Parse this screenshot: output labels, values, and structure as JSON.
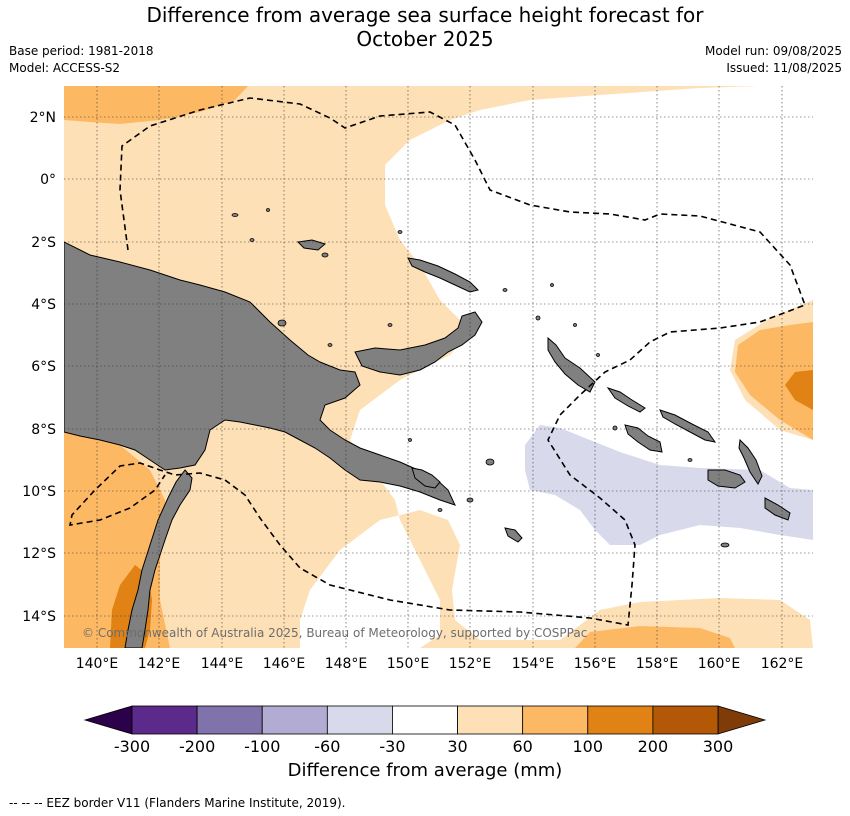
{
  "title_line1": "Difference from average sea surface height forecast for",
  "title_line2": "October 2025",
  "base_period": "Base period: 1981-2018",
  "model": "Model: ACCESS-S2",
  "model_run": "Model run: 09/08/2025",
  "issued": "Issued: 11/08/2025",
  "map": {
    "lat_labels": [
      "2°N",
      "0°",
      "2°S",
      "4°S",
      "6°S",
      "8°S",
      "10°S",
      "12°S",
      "14°S"
    ],
    "lon_labels": [
      "140°E",
      "142°E",
      "144°E",
      "146°E",
      "148°E",
      "150°E",
      "152°E",
      "154°E",
      "156°E",
      "158°E",
      "160°E",
      "162°E"
    ],
    "copyright": "© Commonwealth of Australia 2025, Bureau of Meteorology, supported by COSPPac"
  },
  "colorbar": {
    "ticks": [
      "-300",
      "-200",
      "-100",
      "-60",
      "-30",
      "30",
      "60",
      "100",
      "200",
      "300"
    ],
    "colors": [
      "#5b2a8a",
      "#8073ac",
      "#b2abd2",
      "#d8daeb",
      "#ffffff",
      "#fee0b6",
      "#fdb863",
      "#e08214",
      "#b35806"
    ],
    "low_extend_color": "#2d004b",
    "high_extend_color": "#7f3b08",
    "label": "Difference from average (mm)"
  },
  "footnote": "--  --  -- EEZ border V11 (Flanders Marine Institute, 2019)."
}
